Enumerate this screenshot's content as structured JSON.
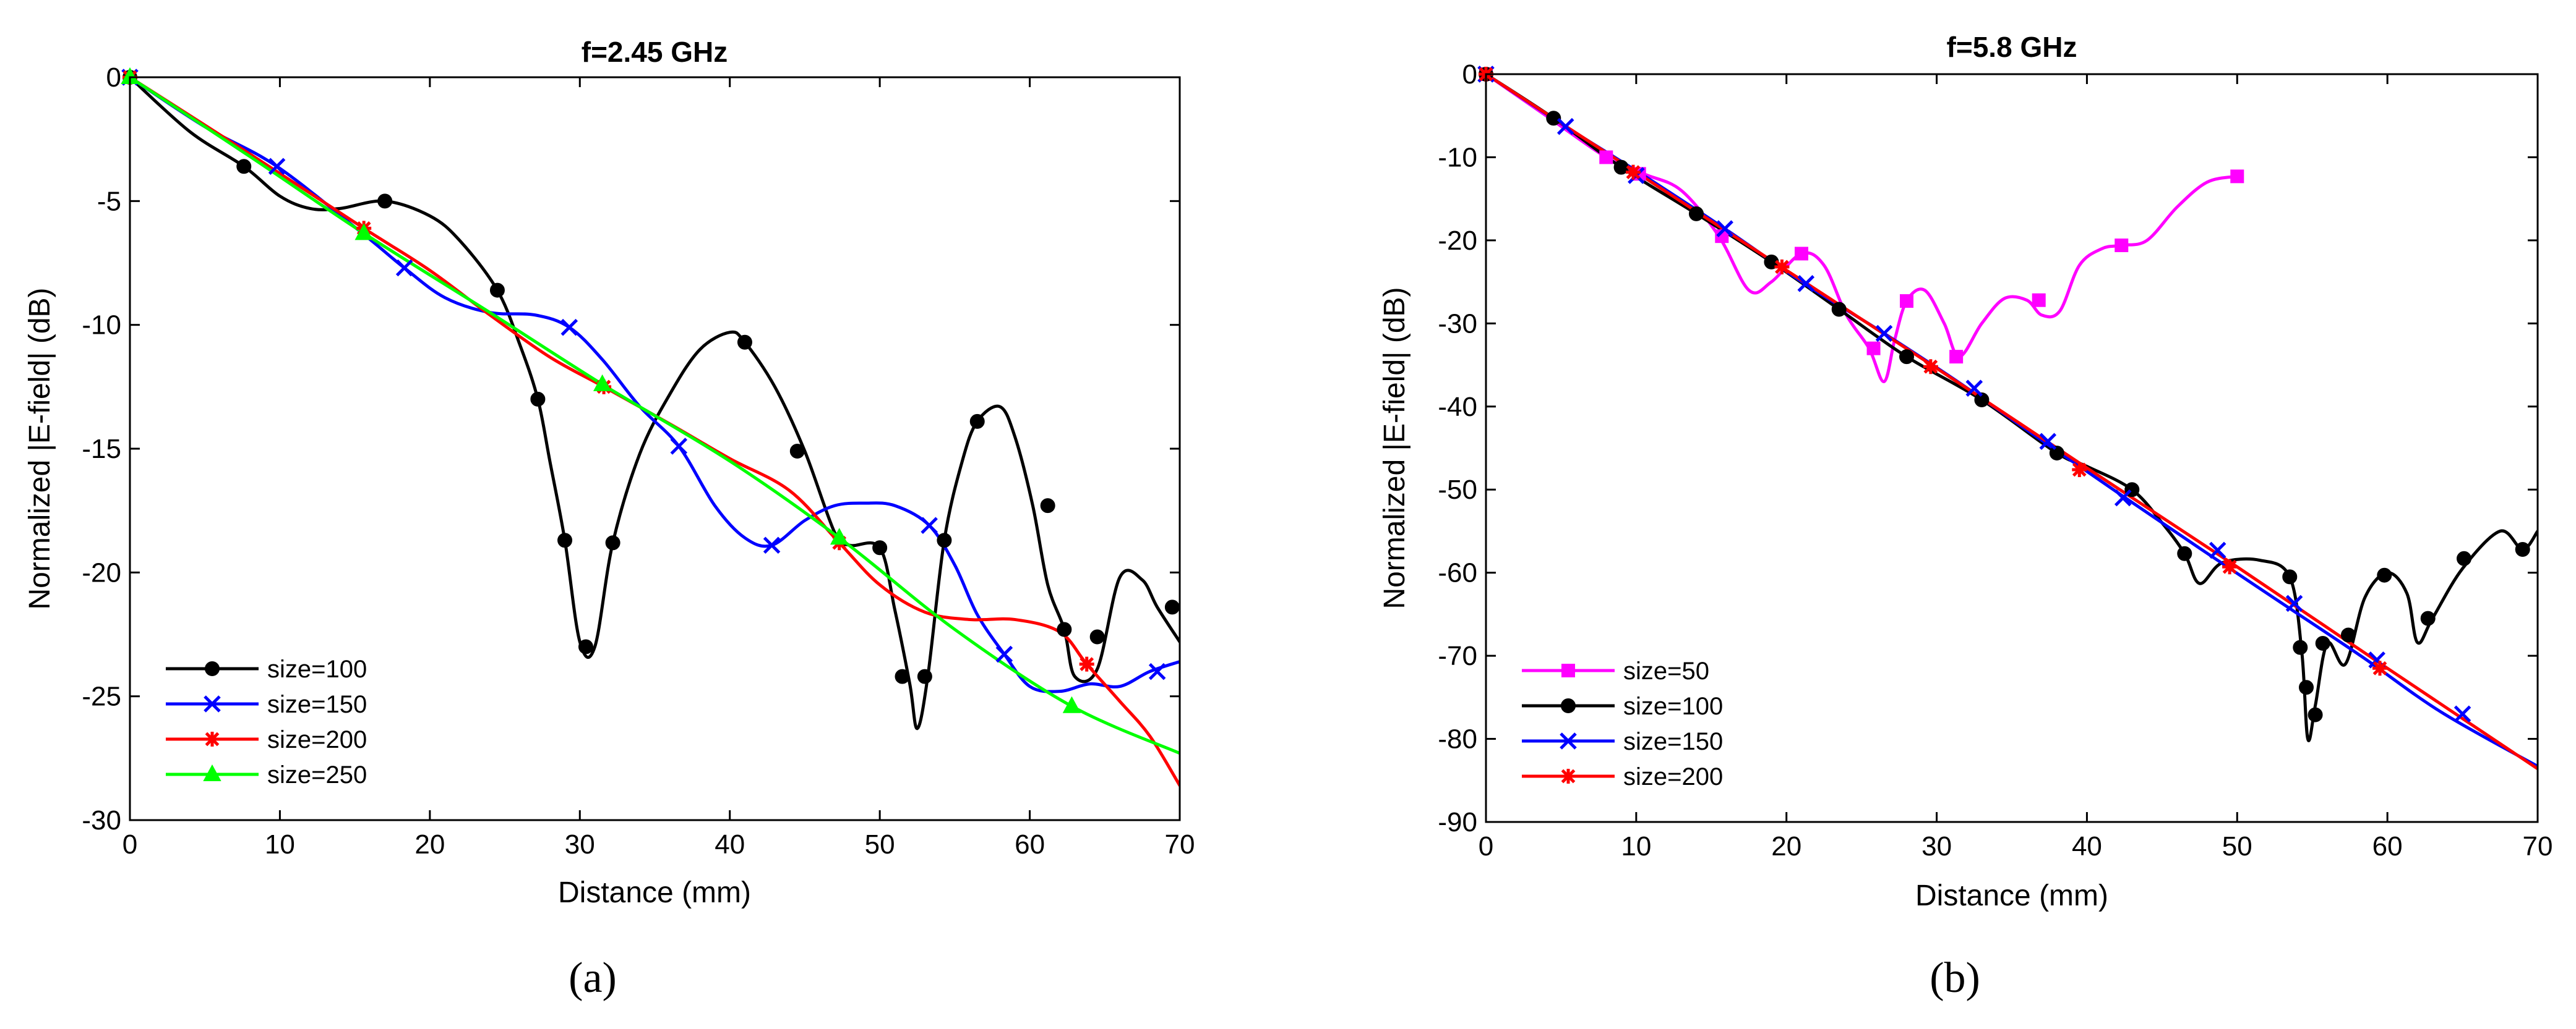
{
  "chart_data": [
    {
      "type": "line",
      "panel_label": "(a)",
      "title": "f=2.45 GHz",
      "xlabel": "Distance (mm)",
      "ylabel": "Normalized |E-field| (dB)",
      "xlim": [
        0,
        70
      ],
      "ylim": [
        -30,
        0
      ],
      "xticks": [
        0,
        10,
        20,
        30,
        40,
        50,
        60,
        70
      ],
      "yticks": [
        0,
        -5,
        -10,
        -15,
        -20,
        -25,
        -30
      ],
      "legend_position": "bottom-left",
      "series": [
        {
          "name": "size=100",
          "color": "#000000",
          "marker": "circle",
          "x": [
            0,
            4,
            7.6,
            10,
            12,
            14,
            17,
            20,
            22,
            24.5,
            26,
            27.2,
            28,
            29,
            30,
            31,
            32.2,
            34,
            36,
            38,
            40,
            41,
            43,
            45,
            47,
            48,
            50,
            51,
            52,
            52.5,
            53.2,
            54.3,
            55.5,
            56.5,
            58,
            59,
            60.2,
            61.2,
            62.3,
            63,
            64.5,
            66,
            67.5,
            68.5,
            70
          ],
          "y": [
            0,
            -2.2,
            -3.6,
            -4.8,
            -5.3,
            -5.3,
            -5.0,
            -5.6,
            -6.6,
            -8.6,
            -10.8,
            -13.0,
            -15.5,
            -18.7,
            -22.8,
            -23.0,
            -18.8,
            -15.2,
            -12.8,
            -11.0,
            -10.3,
            -10.7,
            -12.5,
            -15.1,
            -18.4,
            -18.9,
            -19.0,
            -21.5,
            -24.5,
            -26.3,
            -24.2,
            -18.7,
            -15.5,
            -13.9,
            -13.3,
            -14.5,
            -17.3,
            -20.5,
            -22.3,
            -24.2,
            -23.9,
            -20.2,
            -20.3,
            -21.4,
            -22.8
          ],
          "marker_x": [
            0,
            7.6,
            17,
            24.5,
            27.2,
            29,
            30.4,
            32.2,
            41,
            44.5,
            50,
            51.5,
            53,
            54.3,
            56.5,
            61.2,
            62.3,
            64.5,
            69.5
          ],
          "marker_y": [
            0,
            -3.6,
            -5.0,
            -8.6,
            -13.0,
            -18.7,
            -23.0,
            -18.8,
            -10.7,
            -15.1,
            -19.0,
            -24.2,
            -24.2,
            -18.7,
            -13.9,
            -17.3,
            -22.3,
            -22.6,
            -21.4
          ]
        },
        {
          "name": "size=150",
          "color": "#0000ff",
          "marker": "x",
          "x": [
            0,
            5,
            9.8,
            15.5,
            18.3,
            21,
            24,
            27,
            29.3,
            31.5,
            34,
            36.6,
            39,
            41,
            42.8,
            45,
            47,
            49,
            51,
            53.3,
            55,
            56.5,
            58.3,
            60,
            62,
            64,
            66,
            68,
            70
          ],
          "y": [
            0,
            -2.0,
            -3.6,
            -6.3,
            -7.7,
            -8.9,
            -9.5,
            -9.6,
            -10.1,
            -11.4,
            -13.3,
            -14.9,
            -17.3,
            -18.6,
            -18.9,
            -17.9,
            -17.3,
            -17.2,
            -17.3,
            -18.1,
            -19.7,
            -21.7,
            -23.3,
            -24.6,
            -24.8,
            -24.5,
            -24.6,
            -24.0,
            -23.6
          ],
          "marker_x": [
            0,
            9.8,
            18.3,
            29.3,
            36.6,
            42.8,
            53.3,
            58.3,
            68.5
          ],
          "marker_y": [
            0,
            -3.6,
            -7.7,
            -10.1,
            -14.9,
            -18.9,
            -18.1,
            -23.3,
            -24.0
          ]
        },
        {
          "name": "size=200",
          "color": "#ff0000",
          "marker": "asterisk",
          "x": [
            0,
            8,
            15.6,
            20,
            24,
            28,
            31.6,
            36,
            40,
            44,
            47.3,
            50,
            53,
            56,
            59,
            62,
            63.8,
            66,
            68,
            70
          ],
          "y": [
            0,
            -3.1,
            -6.1,
            -7.8,
            -9.6,
            -11.3,
            -12.5,
            -14.0,
            -15.4,
            -16.7,
            -18.8,
            -20.5,
            -21.6,
            -21.9,
            -21.9,
            -22.4,
            -23.7,
            -25.2,
            -26.6,
            -28.6
          ],
          "marker_x": [
            0,
            15.6,
            31.6,
            47.3,
            63.8
          ],
          "marker_y": [
            0,
            -6.1,
            -12.5,
            -18.8,
            -23.7
          ]
        },
        {
          "name": "size=250",
          "color": "#00ff00",
          "marker": "triangle",
          "x": [
            0,
            8,
            15.6,
            24,
            31.5,
            40,
            47.3,
            55,
            62.8,
            70
          ],
          "y": [
            0,
            -3.2,
            -6.3,
            -9.5,
            -12.4,
            -15.5,
            -18.6,
            -22.3,
            -25.4,
            -27.3
          ],
          "marker_x": [
            0,
            15.6,
            31.5,
            47.3,
            62.8
          ],
          "marker_y": [
            0,
            -6.3,
            -12.4,
            -18.6,
            -25.4
          ]
        }
      ]
    },
    {
      "type": "line",
      "panel_label": "(b)",
      "title": "f=5.8 GHz",
      "xlabel": "Distance (mm)",
      "ylabel": "Normalized |E-field| (dB)",
      "xlim": [
        0,
        70
      ],
      "ylim": [
        -90,
        0
      ],
      "xticks": [
        0,
        10,
        20,
        30,
        40,
        50,
        60,
        70
      ],
      "yticks": [
        0,
        -10,
        -20,
        -30,
        -40,
        -50,
        -60,
        -70,
        -80,
        -90
      ],
      "legend_position": "bottom-left",
      "series": [
        {
          "name": "size=50",
          "color": "#ff00ff",
          "marker": "square",
          "x": [
            0,
            4,
            8,
            10.5,
            13,
            15.5,
            17.5,
            19,
            21,
            22.5,
            24,
            25.5,
            26.5,
            27.2,
            28,
            29.2,
            30.5,
            31.5,
            33,
            34.5,
            36,
            37,
            38.2,
            39.5,
            41,
            42.3,
            44,
            46,
            48,
            50
          ],
          "y": [
            0,
            -5,
            -10,
            -12,
            -14,
            -19.5,
            -26,
            -25,
            -21.6,
            -23,
            -29,
            -33,
            -37,
            -32,
            -27.3,
            -26,
            -30,
            -34,
            -30,
            -27,
            -27.2,
            -29,
            -28.5,
            -23,
            -21,
            -20.6,
            -20,
            -16,
            -13,
            -12.3
          ],
          "marker_x": [
            0,
            8,
            10.2,
            15.7,
            21,
            25.8,
            28,
            31.3,
            36.8,
            42.3,
            50
          ],
          "marker_y": [
            0,
            -10,
            -12,
            -19.5,
            -21.6,
            -33,
            -27.3,
            -34,
            -27.2,
            -20.6,
            -12.3
          ]
        },
        {
          "name": "size=100",
          "color": "#000000",
          "marker": "circle",
          "x": [
            0,
            4.5,
            9,
            14,
            19,
            23.5,
            28,
            33,
            38,
            40,
            43,
            45,
            46.5,
            47.5,
            49,
            51.5,
            53.5,
            54.3,
            54.7,
            55.2,
            56,
            57.2,
            58.5,
            60,
            61.3,
            62,
            63,
            65,
            67.5,
            69,
            70
          ],
          "y": [
            0,
            -5.3,
            -11.2,
            -16.8,
            -22.6,
            -28.3,
            -34,
            -39.2,
            -45.6,
            -47.2,
            -50,
            -54,
            -57.7,
            -61.3,
            -58.8,
            -58.5,
            -60.5,
            -69.5,
            -80,
            -76,
            -68.5,
            -71,
            -63,
            -60,
            -62.5,
            -68.4,
            -65.5,
            -59.5,
            -55,
            -57.2,
            -55
          ],
          "marker_x": [
            0,
            4.5,
            9,
            14,
            19,
            23.5,
            28,
            33,
            38,
            43,
            46.5,
            53.5,
            54.2,
            54.6,
            55.2,
            55.7,
            57.4,
            59.8,
            62.7,
            65.1,
            69
          ],
          "marker_y": [
            0,
            -5.3,
            -11.2,
            -16.8,
            -22.6,
            -28.3,
            -34,
            -39.2,
            -45.6,
            -50,
            -57.7,
            -60.5,
            -69,
            -73.8,
            -77.1,
            -68.5,
            -67.5,
            -60.3,
            -65.5,
            -58.3,
            -57.2
          ]
        },
        {
          "name": "size=150",
          "color": "#0000ff",
          "marker": "x",
          "x": [
            0,
            5.3,
            10.5,
            15.9,
            21.2,
            26.5,
            31.8,
            37.1,
            42.4,
            47.7,
            53,
            58.3,
            63.6,
            70
          ],
          "y": [
            0,
            -6.3,
            -12.2,
            -18.6,
            -25.2,
            -31.2,
            -37.5,
            -44.2,
            -50.8,
            -57.3,
            -63.7,
            -70.1,
            -76.8,
            -83.3
          ],
          "marker_x": [
            0,
            5.3,
            10,
            15.9,
            21.3,
            26.5,
            32.5,
            37.4,
            42.4,
            48.7,
            53.8,
            59.3,
            65
          ],
          "marker_y": [
            0,
            -6.3,
            -12.2,
            -18.6,
            -25.2,
            -31.2,
            -37.8,
            -44.2,
            -51,
            -57.3,
            -63.7,
            -70.5,
            -77
          ]
        },
        {
          "name": "size=200",
          "color": "#ff0000",
          "marker": "asterisk",
          "x": [
            0,
            10,
            20,
            30,
            40,
            50,
            60,
            70
          ],
          "y": [
            0,
            -11.8,
            -23.6,
            -35.4,
            -47.4,
            -59.3,
            -71.5,
            -83.6
          ],
          "marker_x": [
            0,
            9.8,
            19.7,
            29.6,
            39.5,
            49.5,
            59.5
          ],
          "marker_y": [
            0,
            -11.8,
            -23.2,
            -35.2,
            -47.6,
            -59.3,
            -71.5
          ]
        }
      ]
    }
  ]
}
